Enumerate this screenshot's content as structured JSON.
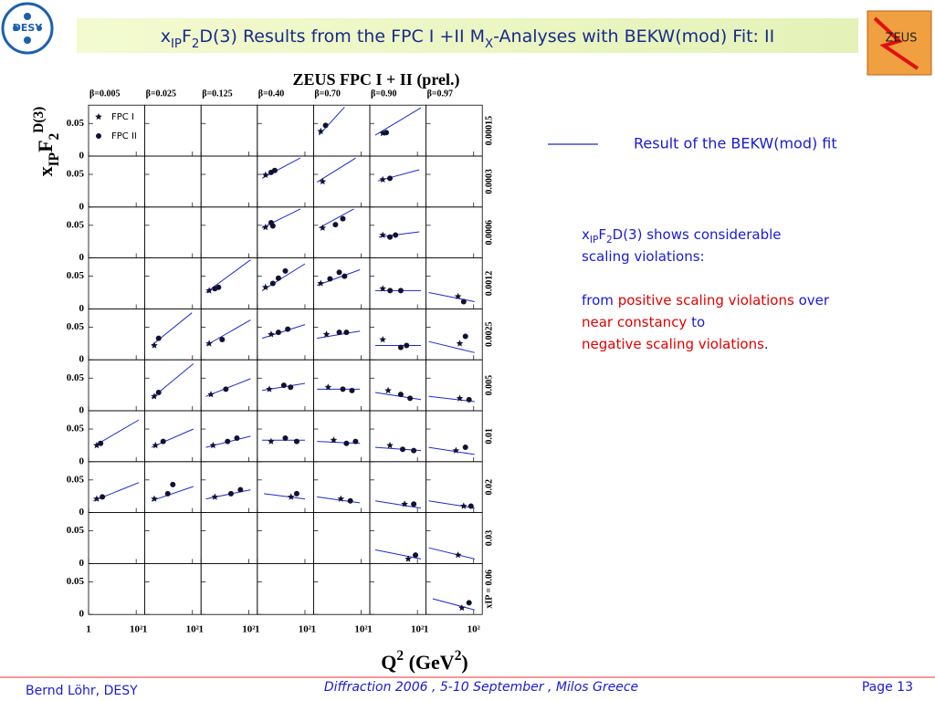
{
  "header": {
    "title": [
      {
        "text": "x"
      },
      {
        "text": "IP",
        "sub": true
      },
      {
        "text": "F"
      },
      {
        "text": "2",
        "sub": true
      },
      {
        "text": "D(3) Results from the FPC I +II  M"
      },
      {
        "text": "X",
        "sub": true
      },
      {
        "text": "-Analyses  with BEKW(mod) Fit:  II"
      }
    ],
    "logos": {
      "left": "DESY",
      "right": "ZEUS"
    }
  },
  "chart_data": {
    "type": "panel-grid",
    "title": "ZEUS FPC I + II (prel.)",
    "x_label": [
      {
        "text": "Q"
      },
      {
        "text": "2",
        "sup": true
      },
      {
        "text": " (GeV"
      },
      {
        "text": "2",
        "sup": true
      },
      {
        "text": ")"
      }
    ],
    "y_label": [
      {
        "text": "x"
      },
      {
        "text": "IP",
        "sub": true
      },
      {
        "text": "F"
      },
      {
        "text": "2",
        "sub": true
      },
      {
        "text": "D(3)",
        "sup": true
      }
    ],
    "columns": [
      "β=0.005",
      "β=0.025",
      "β=0.125",
      "β=0.40",
      "β=0.70",
      "β=0.90",
      "β=0.97"
    ],
    "rows": [
      "0.00015",
      "0.0003",
      "0.0006",
      "0.0012",
      "0.0025",
      "0.005",
      "0.01",
      "0.02",
      "0.03",
      "xIP = 0.06"
    ],
    "xlim": [
      1,
      230
    ],
    "ylim": [
      0,
      0.078
    ],
    "log_x": true,
    "xticks": [
      1,
      {
        "value": 100,
        "label": "10²"
      }
    ],
    "yticks": [
      0,
      0.05
    ],
    "series": [
      {
        "name": "FPC I",
        "marker": "star",
        "color": "#111133"
      },
      {
        "name": "FPC II",
        "marker": "dot",
        "color": "#111133"
      }
    ],
    "fit_color": "#1a2ad0",
    "panels": [
      [
        null,
        null,
        null,
        null,
        {
          "fit_x": [
            1.7,
            20
          ],
          "fit_y": [
            0.032,
            0.075
          ],
          "fpc1_x": [
            2.0
          ],
          "fpc1_y": [
            0.038
          ],
          "fpc2_x": [
            3.2
          ],
          "fpc2_y": [
            0.047
          ]
        },
        {
          "fit_x": [
            1.7,
            140
          ],
          "fit_y": [
            0.032,
            0.074
          ],
          "fpc1_x": [
            3.5
          ],
          "fpc1_y": [
            0.035
          ],
          "fpc2_x": [
            4.9
          ],
          "fpc2_y": [
            0.036
          ]
        },
        null
      ],
      [
        null,
        null,
        null,
        {
          "fit_x": [
            1.6,
            64
          ],
          "fit_y": [
            0.044,
            0.075
          ],
          "fpc1_x": [
            2.2
          ],
          "fpc1_y": [
            0.049
          ],
          "fpc2_x": [
            3.8,
            5.4
          ],
          "fpc2_y": [
            0.053,
            0.056
          ]
        },
        {
          "fit_x": [
            1.4,
            59
          ],
          "fit_y": [
            0.038,
            0.075
          ],
          "fpc1_x": [
            2.4
          ],
          "fpc1_y": [
            0.039
          ],
          "fpc2_x": [],
          "fpc2_y": []
        },
        {
          "fit_x": [
            2.2,
            120
          ],
          "fit_y": [
            0.04,
            0.057
          ],
          "fpc1_x": [
            3.5
          ],
          "fpc1_y": [
            0.042
          ],
          "fpc2_x": [
            7
          ],
          "fpc2_y": [
            0.044
          ]
        },
        null
      ],
      [
        null,
        null,
        null,
        {
          "fit_x": [
            1.6,
            64
          ],
          "fit_y": [
            0.046,
            0.075
          ],
          "fpc1_x": [
            2.2
          ],
          "fpc1_y": [
            0.047
          ],
          "fpc2_x": [
            3.8,
            4.5
          ],
          "fpc2_y": [
            0.054,
            0.049
          ]
        },
        {
          "fit_x": [
            1.7,
            49
          ],
          "fit_y": [
            0.046,
            0.075
          ],
          "fpc1_x": [
            2.4
          ],
          "fpc1_y": [
            0.046
          ],
          "fpc2_x": [
            8.3,
            17
          ],
          "fpc2_y": [
            0.051,
            0.06
          ]
        },
        {
          "fit_x": [
            2.4,
            120
          ],
          "fit_y": [
            0.032,
            0.04
          ],
          "fpc1_x": [
            3.5
          ],
          "fpc1_y": [
            0.035
          ],
          "fpc2_x": [
            7,
            12
          ],
          "fpc2_y": [
            0.032,
            0.035
          ]
        },
        null
      ],
      [
        null,
        null,
        {
          "fit_x": [
            1.6,
            120
          ],
          "fit_y": [
            0.025,
            0.075
          ],
          "fpc1_x": [
            2.2
          ],
          "fpc1_y": [
            0.028
          ],
          "fpc2_x": [
            3.8,
            5.4
          ],
          "fpc2_y": [
            0.031,
            0.033
          ]
        },
        {
          "fit_x": [
            1.6,
            100
          ],
          "fit_y": [
            0.028,
            0.069
          ],
          "fpc1_x": [
            2.2
          ],
          "fpc1_y": [
            0.033
          ],
          "fpc2_x": [
            4.5,
            7.7,
            15
          ],
          "fpc2_y": [
            0.039,
            0.047,
            0.058
          ]
        },
        {
          "fit_x": [
            1.4,
            89
          ],
          "fit_y": [
            0.036,
            0.06
          ],
          "fpc1_x": [
            2.0
          ],
          "fpc1_y": [
            0.039
          ],
          "fpc2_x": [
            4.9,
            12,
            20
          ],
          "fpc2_y": [
            0.046,
            0.056,
            0.05
          ]
        },
        {
          "fit_x": [
            1.7,
            140
          ],
          "fit_y": [
            0.028,
            0.028
          ],
          "fpc1_x": [
            3.5
          ],
          "fpc1_y": [
            0.031
          ],
          "fpc2_x": [
            7.1,
            20
          ],
          "fpc2_y": [
            0.028,
            0.028
          ]
        },
        {
          "fit_x": [
            1.3,
            110
          ],
          "fit_y": [
            0.025,
            0.011
          ],
          "fpc1_x": [
            22
          ],
          "fpc1_y": [
            0.019
          ],
          "fpc2_x": [
            38
          ],
          "fpc2_y": [
            0.011
          ]
        }
      ],
      [
        null,
        {
          "fit_x": [
            1.9,
            95
          ],
          "fit_y": [
            0.022,
            0.072
          ],
          "fpc1_x": [
            2.5
          ],
          "fpc1_y": [
            0.022
          ],
          "fpc2_x": [
            3.8
          ],
          "fpc2_y": [
            0.033
          ]
        },
        {
          "fit_x": [
            1.6,
            120
          ],
          "fit_y": [
            0.022,
            0.061
          ],
          "fpc1_x": [
            2.2
          ],
          "fpc1_y": [
            0.025
          ],
          "fpc2_x": [
            7.7
          ],
          "fpc2_y": [
            0.031
          ]
        },
        {
          "fit_x": [
            1.6,
            100
          ],
          "fit_y": [
            0.033,
            0.054
          ],
          "fpc1_x": [
            3.8
          ],
          "fpc1_y": [
            0.039
          ],
          "fpc2_x": [
            7.7,
            19
          ],
          "fpc2_y": [
            0.042,
            0.047
          ]
        },
        {
          "fit_x": [
            1.4,
            89
          ],
          "fit_y": [
            0.033,
            0.044
          ],
          "fpc1_x": [
            3.5
          ],
          "fpc1_y": [
            0.039
          ],
          "fpc2_x": [
            12,
            24
          ],
          "fpc2_y": [
            0.042,
            0.042
          ]
        },
        {
          "fit_x": [
            1.7,
            140
          ],
          "fit_y": [
            0.022,
            0.022
          ],
          "fpc1_x": [
            3.5
          ],
          "fpc1_y": [
            0.031
          ],
          "fpc2_x": [
            20,
            35
          ],
          "fpc2_y": [
            0.019,
            0.022
          ]
        },
        {
          "fit_x": [
            1.3,
            110
          ],
          "fit_y": [
            0.028,
            0.011
          ],
          "fpc1_x": [
            26
          ],
          "fpc1_y": [
            0.025
          ],
          "fpc2_x": [
            45
          ],
          "fpc2_y": [
            0.036
          ]
        }
      ],
      [
        null,
        {
          "fit_x": [
            1.9,
            110
          ],
          "fit_y": [
            0.019,
            0.072
          ],
          "fpc1_x": [
            2.5
          ],
          "fpc1_y": [
            0.022
          ],
          "fpc2_x": [
            3.8
          ],
          "fpc2_y": [
            0.028
          ]
        },
        {
          "fit_x": [
            1.6,
            120
          ],
          "fit_y": [
            0.022,
            0.049
          ],
          "fpc1_x": [
            2.6
          ],
          "fpc1_y": [
            0.025
          ],
          "fpc2_x": [
            11
          ],
          "fpc2_y": [
            0.033
          ]
        },
        {
          "fit_x": [
            1.6,
            100
          ],
          "fit_y": [
            0.031,
            0.042
          ],
          "fpc1_x": [
            3.2
          ],
          "fpc1_y": [
            0.033
          ],
          "fpc2_x": [
            13,
            25
          ],
          "fpc2_y": [
            0.039,
            0.036
          ]
        },
        {
          "fit_x": [
            1.4,
            89
          ],
          "fit_y": [
            0.033,
            0.033
          ],
          "fpc1_x": [
            4.1
          ],
          "fpc1_y": [
            0.036
          ],
          "fpc2_x": [
            17,
            41
          ],
          "fpc2_y": [
            0.033,
            0.031
          ]
        },
        {
          "fit_x": [
            1.7,
            140
          ],
          "fit_y": [
            0.028,
            0.017
          ],
          "fpc1_x": [
            5.9
          ],
          "fpc1_y": [
            0.031
          ],
          "fpc2_x": [
            20,
            49
          ],
          "fpc2_y": [
            0.025,
            0.019
          ]
        },
        {
          "fit_x": [
            1.3,
            110
          ],
          "fit_y": [
            0.022,
            0.014
          ],
          "fpc1_x": [
            26
          ],
          "fpc1_y": [
            0.019
          ],
          "fpc2_x": [
            64
          ],
          "fpc2_y": [
            0.017
          ]
        }
      ],
      [
        {
          "fit_x": [
            1.9,
            130
          ],
          "fit_y": [
            0.025,
            0.064
          ],
          "fpc1_x": [
            2.2
          ],
          "fpc1_y": [
            0.025
          ],
          "fpc2_x": [
            3.2
          ],
          "fpc2_y": [
            0.028
          ]
        },
        {
          "fit_x": [
            1.9,
            110
          ],
          "fit_y": [
            0.022,
            0.05
          ],
          "fpc1_x": [
            2.8
          ],
          "fpc1_y": [
            0.025
          ],
          "fpc2_x": [
            5.9
          ],
          "fpc2_y": [
            0.031
          ]
        },
        {
          "fit_x": [
            1.6,
            120
          ],
          "fit_y": [
            0.022,
            0.039
          ],
          "fpc1_x": [
            3.2
          ],
          "fpc1_y": [
            0.025
          ],
          "fpc2_x": [
            13,
            32
          ],
          "fpc2_y": [
            0.031,
            0.036
          ]
        },
        {
          "fit_x": [
            1.6,
            100
          ],
          "fit_y": [
            0.033,
            0.033
          ],
          "fpc1_x": [
            3.8
          ],
          "fpc1_y": [
            0.031
          ],
          "fpc2_x": [
            15,
            45
          ],
          "fpc2_y": [
            0.036,
            0.031
          ]
        },
        {
          "fit_x": [
            1.4,
            89
          ],
          "fit_y": [
            0.031,
            0.028
          ],
          "fpc1_x": [
            7
          ],
          "fpc1_y": [
            0.033
          ],
          "fpc2_x": [
            24,
            58
          ],
          "fpc2_y": [
            0.028,
            0.031
          ]
        },
        {
          "fit_x": [
            1.7,
            140
          ],
          "fit_y": [
            0.022,
            0.017
          ],
          "fpc1_x": [
            7
          ],
          "fpc1_y": [
            0.025
          ],
          "fpc2_x": [
            24,
            70
          ],
          "fpc2_y": [
            0.019,
            0.017
          ]
        },
        {
          "fit_x": [
            1.3,
            110
          ],
          "fit_y": [
            0.022,
            0.011
          ],
          "fpc1_x": [
            18
          ],
          "fpc1_y": [
            0.017
          ],
          "fpc2_x": [
            45
          ],
          "fpc2_y": [
            0.022
          ]
        }
      ],
      [
        {
          "fit_x": [
            1.6,
            130
          ],
          "fit_y": [
            0.018,
            0.046
          ],
          "fpc1_x": [
            2.2
          ],
          "fpc1_y": [
            0.021
          ],
          "fpc2_x": [
            3.8
          ],
          "fpc2_y": [
            0.024
          ]
        },
        {
          "fit_x": [
            1.9,
            110
          ],
          "fit_y": [
            0.018,
            0.04
          ],
          "fpc1_x": [
            2.5
          ],
          "fpc1_y": [
            0.021
          ],
          "fpc2_x": [
            9.2,
            15
          ],
          "fpc2_y": [
            0.029,
            0.043
          ]
        },
        {
          "fit_x": [
            1.6,
            120
          ],
          "fit_y": [
            0.021,
            0.035
          ],
          "fpc1_x": [
            3.8
          ],
          "fpc1_y": [
            0.024
          ],
          "fpc2_x": [
            18,
            45
          ],
          "fpc2_y": [
            0.029,
            0.035
          ]
        },
        {
          "fit_x": [
            1.9,
            100
          ],
          "fit_y": [
            0.029,
            0.021
          ],
          "fpc1_x": [
            26
          ],
          "fpc1_y": [
            0.024
          ],
          "fpc2_x": [
            45
          ],
          "fpc2_y": [
            0.029
          ]
        },
        {
          "fit_x": [
            1.4,
            89
          ],
          "fit_y": [
            0.024,
            0.015
          ],
          "fpc1_x": [
            14
          ],
          "fpc1_y": [
            0.021
          ],
          "fpc2_x": [
            35
          ],
          "fpc2_y": [
            0.018
          ]
        },
        {
          "fit_x": [
            1.7,
            140
          ],
          "fit_y": [
            0.018,
            0.007
          ],
          "fpc1_x": [
            29
          ],
          "fpc1_y": [
            0.013
          ],
          "fpc2_x": [
            70
          ],
          "fpc2_y": [
            0.013
          ]
        },
        {
          "fit_x": [
            1.3,
            110
          ],
          "fit_y": [
            0.018,
            0.007
          ],
          "fpc1_x": [
            38
          ],
          "fpc1_y": [
            0.01
          ],
          "fpc2_x": [
            77
          ],
          "fpc2_y": [
            0.01
          ]
        }
      ],
      [
        null,
        null,
        null,
        null,
        null,
        {
          "fit_x": [
            1.7,
            140
          ],
          "fit_y": [
            0.021,
            0.007
          ],
          "fpc1_x": [
            41
          ],
          "fpc1_y": [
            0.007
          ],
          "fpc2_x": [
            83
          ],
          "fpc2_y": [
            0.013
          ]
        },
        {
          "fit_x": [
            1.3,
            110
          ],
          "fit_y": [
            0.024,
            0.007
          ],
          "fpc1_x": [
            22
          ],
          "fpc1_y": [
            0.013
          ],
          "fpc2_x": [],
          "fpc2_y": []
        }
      ],
      [
        null,
        null,
        null,
        null,
        null,
        null,
        {
          "fit_x": [
            1.9,
            110
          ],
          "fit_y": [
            0.024,
            0.007
          ],
          "fpc1_x": [
            32
          ],
          "fpc1_y": [
            0.01
          ],
          "fpc2_x": [
            64
          ],
          "fpc2_y": [
            0.018
          ]
        }
      ]
    ]
  },
  "fit_legend": "Result of the BEKW(mod) fit",
  "note": {
    "color": "#1a1ad8",
    "lines": [
      [
        {
          "text": "x"
        },
        {
          "text": "IP",
          "sub": true
        },
        {
          "text": "F"
        },
        {
          "text": "2",
          "sub": true
        },
        {
          "text": "D(3) shows considerable"
        }
      ],
      [
        {
          "text": "scaling violations:"
        }
      ],
      [],
      [
        {
          "text": "from "
        },
        {
          "text": "positive scaling violations",
          "color": "#e00000"
        },
        {
          "text": " over"
        }
      ],
      [
        {
          "text": "near constancy",
          "color": "#e00000"
        },
        {
          "text": " to"
        }
      ],
      [
        {
          "text": "negative scaling violations",
          "color": "#e00000"
        },
        {
          "text": "."
        }
      ]
    ]
  },
  "footer": {
    "left": "Bernd Löhr, DESY",
    "center": "Diffraction 2006 ,  5-10 September ,  Milos Greece",
    "right": "Page 13"
  }
}
